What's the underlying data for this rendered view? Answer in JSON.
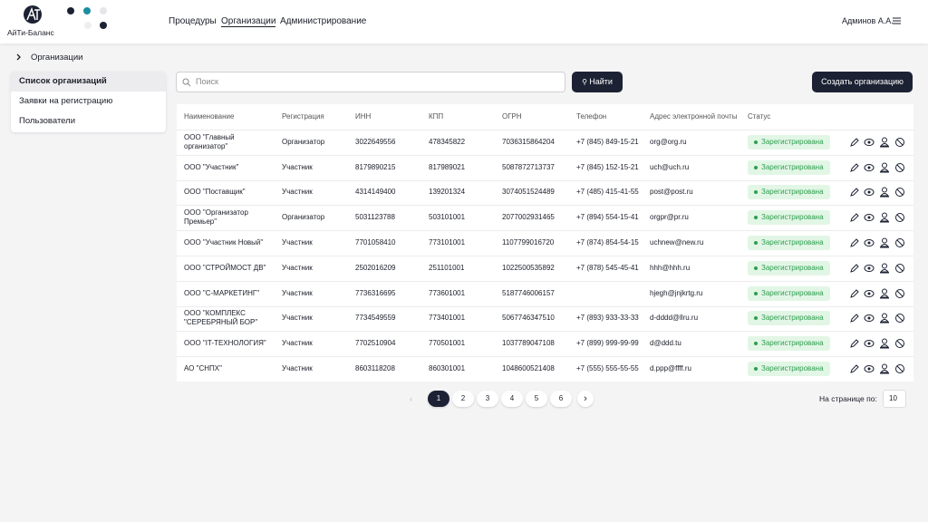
{
  "header": {
    "logo_text": "АйТи-Баланс",
    "nav": [
      "Процедуры",
      "Организации",
      "Администрирование"
    ],
    "user": "Админов А.А."
  },
  "breadcrumb": "Организации",
  "sidebar": [
    "Список организаций",
    "Заявки на регистрацию",
    "Пользователи"
  ],
  "search": {
    "placeholder": "Поиск",
    "button": "Найти"
  },
  "create_button": "Создать организацию",
  "table": {
    "columns": [
      "Наименование",
      "Регистрация",
      "ИНН",
      "КПП",
      "ОГРН",
      "Телефон",
      "Адрес электронной почты",
      "Статус"
    ],
    "rows": [
      [
        "ООО \"Главный организатор\"",
        "Организатор",
        "3022649556",
        "478345822",
        "7036315864204",
        "+7 (845) 849-15-21",
        "org@org.ru",
        "Зарегистрирована"
      ],
      [
        "ООО \"Участник\"",
        "Участник",
        "8179890215",
        "817989021",
        "5087872713737",
        "+7 (845) 152-15-21",
        "uch@uch.ru",
        "Зарегистрирована"
      ],
      [
        "ООО \"Поставщик\"",
        "Участник",
        "4314149400",
        "139201324",
        "3074051524489",
        "+7 (485) 415-41-55",
        "post@post.ru",
        "Зарегистрирована"
      ],
      [
        "ООО \"Организатор Премьер\"",
        "Организатор",
        "5031123788",
        "503101001",
        "2077002931465",
        "+7 (894) 554-15-41",
        "orgpr@pr.ru",
        "Зарегистрирована"
      ],
      [
        "ООО \"Участник Новый\"",
        "Участник",
        "7701058410",
        "773101001",
        "1107799016720",
        "+7 (874) 854-54-15",
        "uchnew@new.ru",
        "Зарегистрирована"
      ],
      [
        "ООО \"СТРОЙМОСТ ДВ\"",
        "Участник",
        "2502016209",
        "251101001",
        "1022500535892",
        "+7 (878) 545-45-41",
        "hhh@hhh.ru",
        "Зарегистрирована"
      ],
      [
        "ООО \"С-МАРКЕТИНГ\"",
        "Участник",
        "7736316695",
        "773601001",
        "5187746006157",
        null,
        "hjegh@jnjkrtg.ru",
        "Зарегистрирована"
      ],
      [
        "ООО \"КОМПЛЕКС \"СЕРЕБРЯНЫЙ БОР\"",
        "Участник",
        "7734549559",
        "773401001",
        "5067746347510",
        "+7 (893) 933-33-33",
        "d-dddd@llru.ru",
        "Зарегистрирована"
      ],
      [
        "ООО \"IT-ТЕХНОЛОГИЯ\"",
        "Участник",
        "7702510904",
        "770501001",
        "1037789047108",
        "+7 (899) 999-99-99",
        "d@ddd.tu",
        "Зарегистрирована"
      ],
      [
        "АО \"СНПХ\"",
        "Участник",
        "8603118208",
        "860301001",
        "1048600521408",
        "+7 (555) 555-55-55",
        "d.ppp@ffff.ru",
        "Зарегистрирована"
      ]
    ]
  },
  "pagination": {
    "pages": [
      "1",
      "2",
      "3",
      "4",
      "5",
      "6"
    ],
    "per_page_label": "На странице по:",
    "per_page": "10"
  }
}
